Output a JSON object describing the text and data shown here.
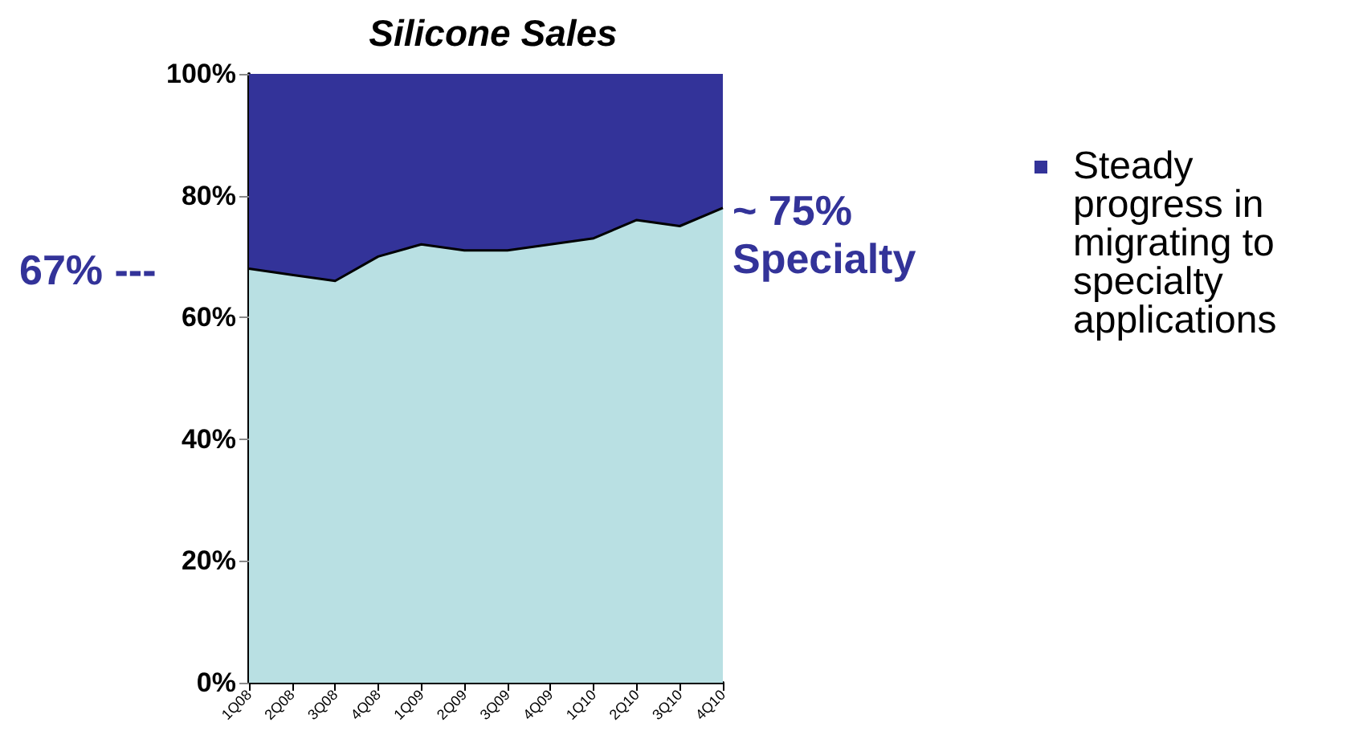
{
  "chart_data": {
    "type": "area",
    "title": "Silicone Sales",
    "stacked": true,
    "categories": [
      "1Q08",
      "2Q08",
      "3Q08",
      "4Q08",
      "1Q09",
      "2Q09",
      "3Q09",
      "4Q09",
      "1Q10",
      "2Q10",
      "3Q10",
      "4Q10"
    ],
    "series": [
      {
        "color": "#b9e0e3",
        "values": [
          68,
          67,
          66,
          70,
          72,
          71,
          71,
          72,
          73,
          76,
          75,
          78
        ]
      },
      {
        "color": "#333399",
        "values": [
          32,
          33,
          34,
          30,
          28,
          29,
          29,
          28,
          27,
          24,
          25,
          22
        ]
      }
    ],
    "ylim": [
      0,
      100
    ],
    "yticks": [
      {
        "value": 0,
        "label": "0%"
      },
      {
        "value": 20,
        "label": "20%"
      },
      {
        "value": 40,
        "label": "40%"
      },
      {
        "value": 60,
        "label": "60%"
      },
      {
        "value": 80,
        "label": "80%"
      },
      {
        "value": 100,
        "label": "100%"
      }
    ],
    "grid": false,
    "annotations": [
      "67% ---",
      "~ 75% Specialty",
      "Steady progress in migrating to specialty applications"
    ]
  }
}
